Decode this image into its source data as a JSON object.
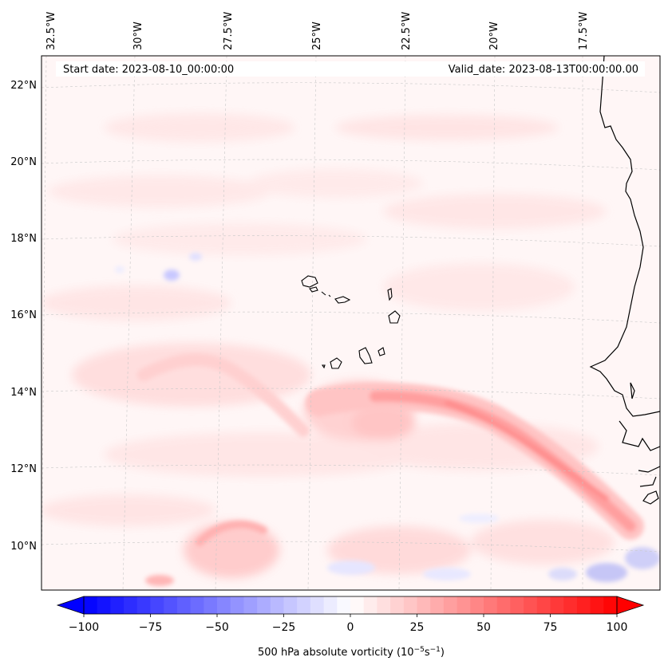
{
  "header": {
    "start_date": "Start date: 2023-08-10_00:00:00",
    "valid_date": "Valid_date: 2023-08-13T00:00:00.00"
  },
  "axes": {
    "longitude_labels": [
      "32.5°W",
      "30°W",
      "27.5°W",
      "25°W",
      "22.5°W",
      "20°W",
      "17.5°W"
    ],
    "latitude_labels": [
      "22°N",
      "20°N",
      "18°N",
      "16°N",
      "14°N",
      "12°N",
      "10°N"
    ]
  },
  "colorbar": {
    "label_main": "500 hPa absolute vorticity (10",
    "label_exp1": "−5",
    "label_mid": "s",
    "label_exp2": "−1",
    "label_close": ")",
    "ticks": [
      "−100",
      "−75",
      "−50",
      "−25",
      "0",
      "25",
      "50",
      "75",
      "100"
    ],
    "range": [
      -100,
      100
    ],
    "negative_color": "#0000ff",
    "positive_color": "#ff0000"
  },
  "field": {
    "variable": "500 hPa absolute vorticity",
    "extent": {
      "lon": [
        -33,
        -15.5
      ],
      "lat": [
        8.8,
        22.8
      ]
    }
  },
  "places": [
    "Cape Verde Islands",
    "West African coast"
  ],
  "colors": {
    "coastline": "#000000",
    "gridline": "#c8c8c8",
    "background_tint": "#fff6f6"
  }
}
